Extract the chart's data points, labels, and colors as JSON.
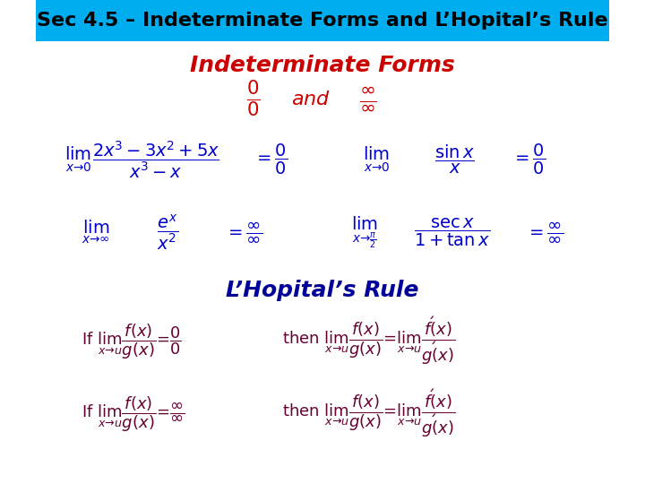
{
  "title": "Sec 4.5 – Indeterminate Forms and L’Hopital’s Rule",
  "title_bg": "#00AEEF",
  "title_color": "black",
  "title_fontsize": 16,
  "subtitle1": "Indeterminate Forms",
  "subtitle1_color": "#CC0000",
  "subtitle1_fontsize": 18,
  "subtitle2": "L’Hopital’s Rule",
  "subtitle2_color": "#000099",
  "subtitle2_fontsize": 18,
  "bg_color": "white",
  "blue": "#0000CC",
  "red": "#CC0000",
  "purple": "#660033"
}
